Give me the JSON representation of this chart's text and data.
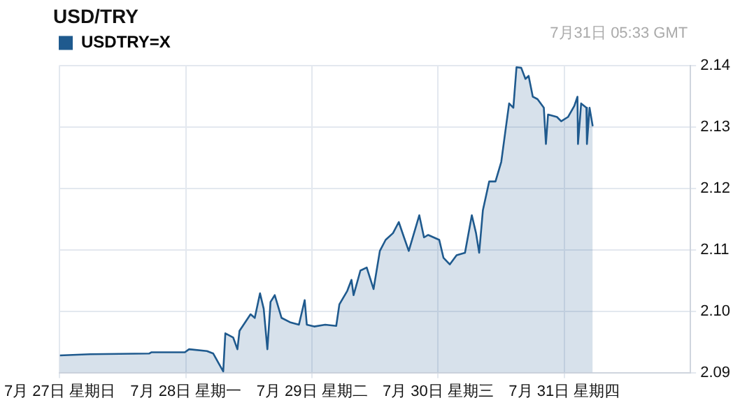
{
  "chart_data": {
    "type": "area",
    "title": "USD/TRY",
    "annotations": [
      "7月31日 05:33 GMT"
    ],
    "legend": "top left",
    "grid": true,
    "marker": "none",
    "xlim": [
      "--07-27",
      "--08-01"
    ],
    "xticks": [
      {
        "value": "--07-27",
        "label": "7月 27日 星期日"
      },
      {
        "value": "--07-28",
        "label": "7月 28日 星期一"
      },
      {
        "value": "--07-29",
        "label": "7月 29日 星期二"
      },
      {
        "value": "--07-30",
        "label": "7月 30日 星期三"
      },
      {
        "value": "--07-31",
        "label": "7月 31日 星期四"
      }
    ],
    "ylim": [
      2.09,
      2.14
    ],
    "yticks": [
      2.09,
      {
        "value": 2.1,
        "label": "2.10"
      },
      2.11,
      2.12,
      2.13,
      2.14
    ],
    "series": [
      {
        "name": "USDTRY=X",
        "color": "#1f5a8e",
        "x": [
          "--07-27T00:00",
          "--07-27T05:48",
          "--07-27T17:00",
          "--07-27T17:24",
          "--07-27T23:48",
          "--07-28T00:36",
          "--07-28T04:00",
          "--07-28T05:12",
          "--07-28T06:30",
          "--07-28T07:06",
          "--07-28T07:30",
          "--07-28T09:00",
          "--07-28T09:48",
          "--07-28T10:12",
          "--07-28T12:18",
          "--07-28T13:06",
          "--07-28T14:06",
          "--07-28T14:48",
          "--07-28T15:30",
          "--07-28T16:06",
          "--07-28T16:54",
          "--07-28T18:12",
          "--07-28T19:48",
          "--07-28T21:30",
          "--07-28T22:36",
          "--07-28T23:00",
          "--07-29T00:24",
          "--07-29T02:30",
          "--07-29T04:36",
          "--07-29T05:12",
          "--07-29T06:42",
          "--07-29T07:30",
          "--07-29T07:54",
          "--07-29T09:12",
          "--07-29T10:24",
          "--07-29T11:42",
          "--07-29T12:54",
          "--07-29T14:00",
          "--07-29T15:24",
          "--07-29T16:30",
          "--07-29T17:30",
          "--07-29T18:24",
          "--07-29T20:24",
          "--07-29T21:18",
          "--07-29T22:06",
          "--07-30T00:12",
          "--07-30T01:00",
          "--07-30T02:12",
          "--07-30T03:30",
          "--07-30T05:06",
          "--07-30T06:24",
          "--07-30T07:12",
          "--07-30T07:48",
          "--07-30T08:30",
          "--07-30T09:42",
          "--07-30T10:54",
          "--07-30T12:00",
          "--07-30T12:48",
          "--07-30T13:30",
          "--07-30T14:18",
          "--07-30T14:54",
          "--07-30T15:48",
          "--07-30T16:36",
          "--07-30T17:12",
          "--07-30T18:00",
          "--07-30T18:54",
          "--07-30T20:06",
          "--07-30T20:30",
          "--07-30T20:54",
          "--07-30T22:36",
          "--07-30T23:24",
          "--07-31T00:42",
          "--07-31T01:54",
          "--07-31T02:30",
          "--07-31T02:36",
          "--07-31T03:12",
          "--07-31T04:12",
          "--07-31T04:18",
          "--07-31T04:48",
          "--07-31T05:24"
        ],
        "values": [
          2.0928,
          2.093,
          2.0931,
          2.0933,
          2.0933,
          2.0938,
          2.0935,
          2.0931,
          2.0911,
          2.0902,
          2.0964,
          2.0957,
          2.0938,
          2.0968,
          2.0995,
          2.0989,
          2.1029,
          2.1004,
          2.0938,
          2.1015,
          2.1026,
          2.0989,
          2.0982,
          2.0978,
          2.1018,
          2.0978,
          2.0975,
          2.0978,
          2.0976,
          2.1011,
          2.1033,
          2.1051,
          2.1026,
          2.1066,
          2.1071,
          2.1036,
          2.1098,
          2.1116,
          2.1127,
          2.1145,
          2.112,
          2.1098,
          2.1156,
          2.112,
          2.1124,
          2.1116,
          2.1087,
          2.1076,
          2.1091,
          2.1095,
          2.1156,
          2.1127,
          2.1095,
          2.1164,
          2.1211,
          2.1211,
          2.1243,
          2.1294,
          2.1338,
          2.1331,
          2.1397,
          2.1396,
          2.1378,
          2.1383,
          2.1349,
          2.1345,
          2.1331,
          2.1272,
          2.132,
          2.1316,
          2.1309,
          2.1316,
          2.1334,
          2.1349,
          2.1272,
          2.1338,
          2.1331,
          2.1272,
          2.1331,
          2.1301
        ]
      }
    ]
  }
}
